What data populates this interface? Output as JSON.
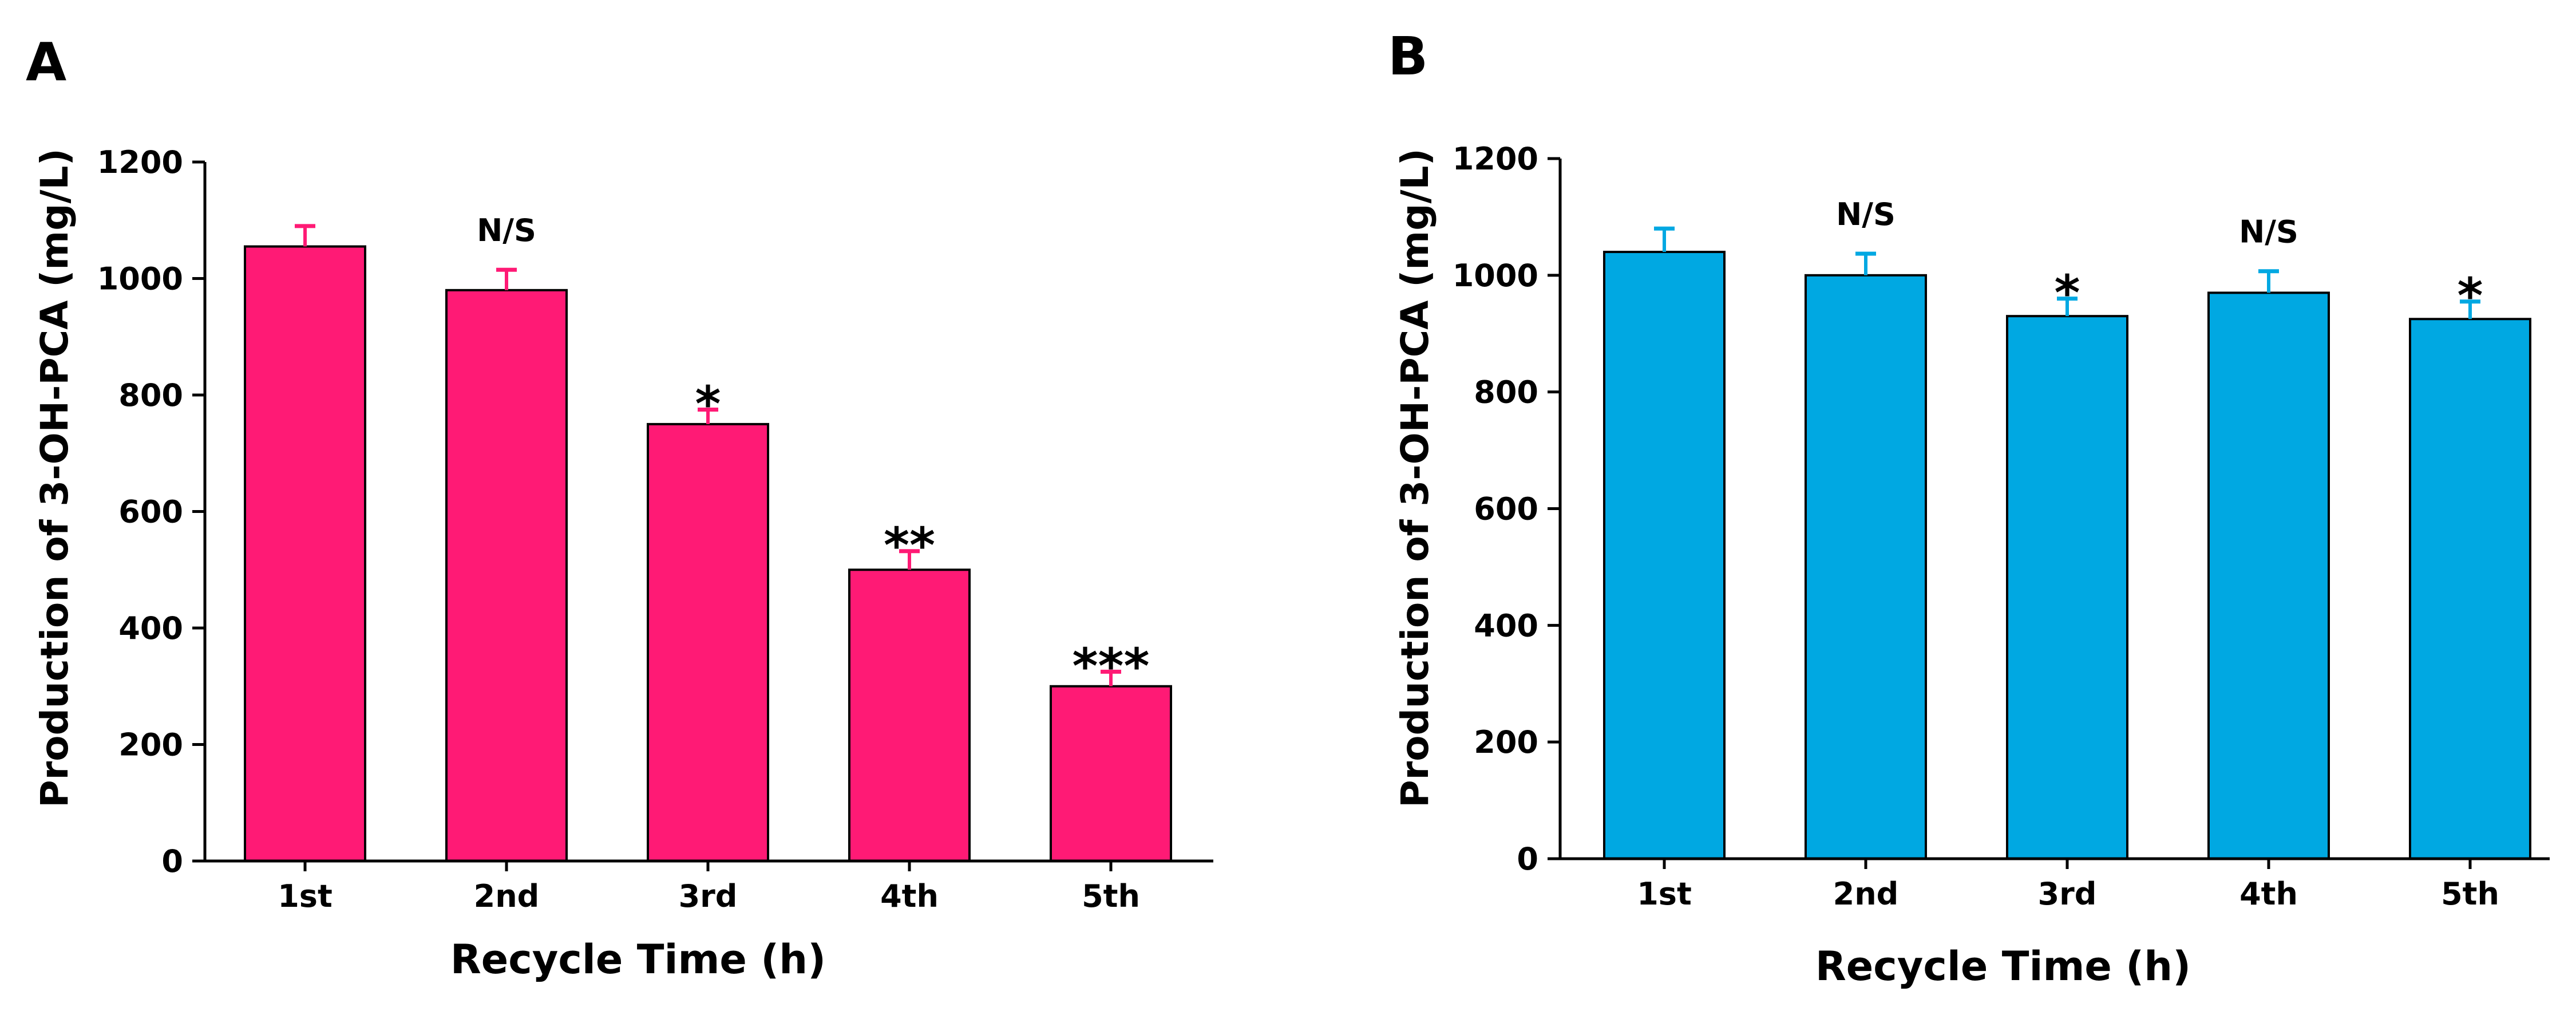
{
  "chart_data": [
    {
      "panel_label": "A",
      "type": "bar",
      "title": "",
      "xlabel": "Recycle Time (h)",
      "ylabel": "Production of 3-OH-PCA (mg/L)",
      "categories": [
        "1st",
        "2nd",
        "3rd",
        "4th",
        "5th"
      ],
      "values": [
        1055,
        980,
        750,
        500,
        300
      ],
      "errors": [
        35,
        35,
        25,
        32,
        25
      ],
      "annotations": [
        "",
        "N/S",
        "*",
        "**",
        "***"
      ],
      "ylim": [
        0,
        1200
      ],
      "yticks": [
        0,
        200,
        400,
        600,
        800,
        1000,
        1200
      ],
      "color": "#FF1A75",
      "error_color": "#FF1A75",
      "grid": false
    },
    {
      "panel_label": "B",
      "type": "bar",
      "title": "",
      "xlabel": "Recycle Time (h)",
      "ylabel": "Production of 3-OH-PCA (mg/L)",
      "categories": [
        "1st",
        "2nd",
        "3rd",
        "4th",
        "5th"
      ],
      "values": [
        1040,
        1000,
        930,
        970,
        925
      ],
      "errors": [
        40,
        37,
        30,
        37,
        30
      ],
      "annotations": [
        "",
        "N/S",
        "*",
        "N/S",
        "*"
      ],
      "ylim": [
        0,
        1200
      ],
      "yticks": [
        0,
        200,
        400,
        600,
        800,
        1000,
        1200
      ],
      "color": "#00A8E2",
      "error_color": "#00A8E2",
      "grid": false
    }
  ]
}
